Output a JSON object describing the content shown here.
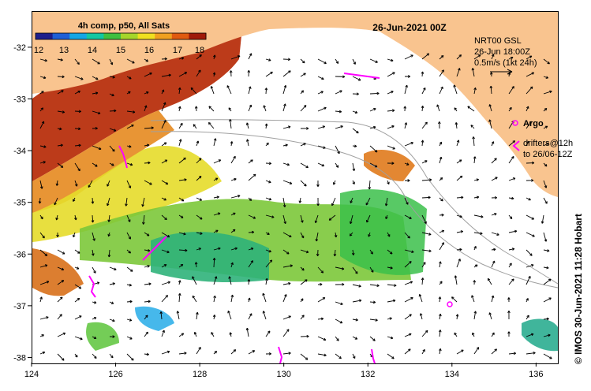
{
  "title": {
    "date": "26-Jun-2021 00Z",
    "colorbar_title": "4h comp, p50, All Sats"
  },
  "colorbar": {
    "ticks": [
      "12",
      "13",
      "14",
      "15",
      "16",
      "17",
      "18"
    ],
    "colors": [
      "#1e1e8c",
      "#1f5fd6",
      "#12a6e6",
      "#12c7a2",
      "#3fbf3f",
      "#a6d62a",
      "#f0e020",
      "#f0a020",
      "#e05a10",
      "#a01a0a"
    ]
  },
  "legend": {
    "current_product": "NRT00 GSL",
    "current_time": "26-Jun 18:00Z",
    "scale": "0.5m/s (1kt 24h)",
    "argo_label": "Argo",
    "drifters_label": "drifters@12h",
    "drifters_to": "to 26/06-12Z"
  },
  "axes": {
    "x_ticks": [
      "124",
      "126",
      "128",
      "130",
      "132",
      "134",
      "136"
    ],
    "y_ticks": [
      "-32",
      "-33",
      "-34",
      "-35",
      "-36",
      "-37",
      "-38"
    ],
    "x_range": [
      124,
      136.5
    ],
    "y_range": [
      -38.1,
      -31.3
    ]
  },
  "credit": "© IMOS 30-Jun-2021 11:28 Hobart",
  "colors": {
    "land": "#f9c48f",
    "argo": "#ff00ff",
    "isobath": "#a0a0a0"
  }
}
